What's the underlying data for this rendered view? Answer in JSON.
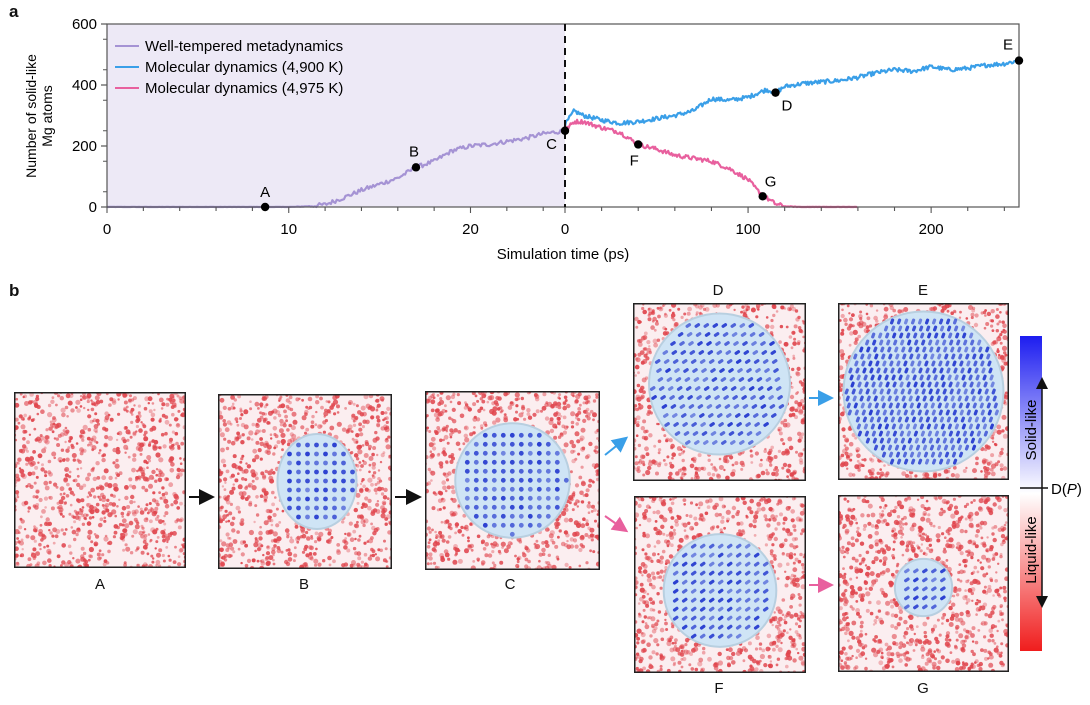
{
  "panel_labels": {
    "a": "a",
    "b": "b"
  },
  "chart_data": {
    "type": "line",
    "ylabel_line1": "Number of solid-like",
    "ylabel_line2": "Mg atoms",
    "xlabel": "Simulation time (ps)",
    "ylim": [
      0,
      600
    ],
    "yticks": [
      "0",
      "200",
      "400",
      "600"
    ],
    "left_segment": {
      "xlim": [
        0,
        25.2
      ],
      "xticks": [
        "0",
        "10",
        "20"
      ],
      "xtick_values": [
        0,
        10,
        20
      ]
    },
    "right_segment": {
      "xlim": [
        0,
        248
      ],
      "xticks": [
        "0",
        "100",
        "200"
      ],
      "xtick_values": [
        0,
        100,
        200
      ]
    },
    "legend": [
      {
        "label": "Well-tempered metadynamics",
        "color": "#a593d4"
      },
      {
        "label": "Molecular dynamics (4,900 K)",
        "color": "#3a9fe8"
      },
      {
        "label": "Molecular dynamics (4,975 K)",
        "color": "#e8609e"
      }
    ],
    "series": [
      {
        "name": "Well-tempered metadynamics",
        "segment": "left",
        "color": "#a593d4",
        "x": [
          0,
          5,
          10,
          11,
          11.5,
          12,
          13,
          14,
          15,
          16,
          17,
          18,
          19,
          20,
          21,
          22,
          23,
          24,
          25.2
        ],
        "y": [
          0,
          0,
          0,
          2,
          5,
          8,
          30,
          55,
          75,
          95,
          130,
          150,
          185,
          200,
          205,
          215,
          225,
          240,
          250
        ]
      },
      {
        "name": "Molecular dynamics (4,900 K)",
        "segment": "right",
        "color": "#3a9fe8",
        "x": [
          0,
          5,
          10,
          20,
          30,
          40,
          50,
          60,
          70,
          80,
          90,
          100,
          110,
          115,
          120,
          130,
          140,
          150,
          160,
          170,
          180,
          190,
          200,
          210,
          220,
          230,
          240,
          248
        ],
        "y": [
          270,
          315,
          300,
          285,
          275,
          280,
          290,
          300,
          315,
          355,
          350,
          360,
          385,
          375,
          395,
          405,
          410,
          415,
          425,
          440,
          450,
          445,
          460,
          450,
          455,
          465,
          470,
          480
        ]
      },
      {
        "name": "Molecular dynamics (4,975 K)",
        "segment": "right",
        "color": "#e8609e",
        "x": [
          0,
          5,
          10,
          20,
          30,
          40,
          50,
          60,
          70,
          80,
          90,
          100,
          105,
          110,
          115,
          120,
          130,
          140,
          150,
          160
        ],
        "y": [
          250,
          280,
          280,
          260,
          245,
          205,
          190,
          170,
          160,
          150,
          125,
          90,
          55,
          30,
          10,
          2,
          0,
          0,
          0,
          0
        ]
      }
    ],
    "points": [
      {
        "label": "A",
        "segment": "left",
        "x": 8.7,
        "y": 0
      },
      {
        "label": "B",
        "segment": "left",
        "x": 17,
        "y": 130
      },
      {
        "label": "C",
        "segment": "right",
        "x": 0,
        "y": 250
      },
      {
        "label": "D",
        "segment": "right",
        "x": 115,
        "y": 375
      },
      {
        "label": "E",
        "segment": "right",
        "x": 248,
        "y": 480
      },
      {
        "label": "F",
        "segment": "right",
        "x": 40,
        "y": 205
      },
      {
        "label": "G",
        "segment": "right",
        "x": 108,
        "y": 35
      }
    ]
  },
  "snapshots": [
    {
      "label": "A",
      "nucleus": 0
    },
    {
      "label": "B",
      "nucleus": 0.42
    },
    {
      "label": "C",
      "nucleus": 0.62
    },
    {
      "label": "D",
      "nucleus": 0.78
    },
    {
      "label": "E",
      "nucleus": 0.9
    },
    {
      "label": "F",
      "nucleus": 0.62
    },
    {
      "label": "G",
      "nucleus": 0.3
    }
  ],
  "colorbar": {
    "solid_label": "Solid-like",
    "liquid_label": "Liquid-like",
    "axis_label_prefix": "D(",
    "axis_label_var": "P",
    "axis_label_suffix": ")",
    "top_color": "#1d1df0",
    "bottom_color": "#f01d1d"
  },
  "colors": {
    "liquid": "#e0464e",
    "solid": "#2a3fd0",
    "nucleus_fill": "#cfe4f5",
    "meta_bg": "#ede9f6"
  }
}
